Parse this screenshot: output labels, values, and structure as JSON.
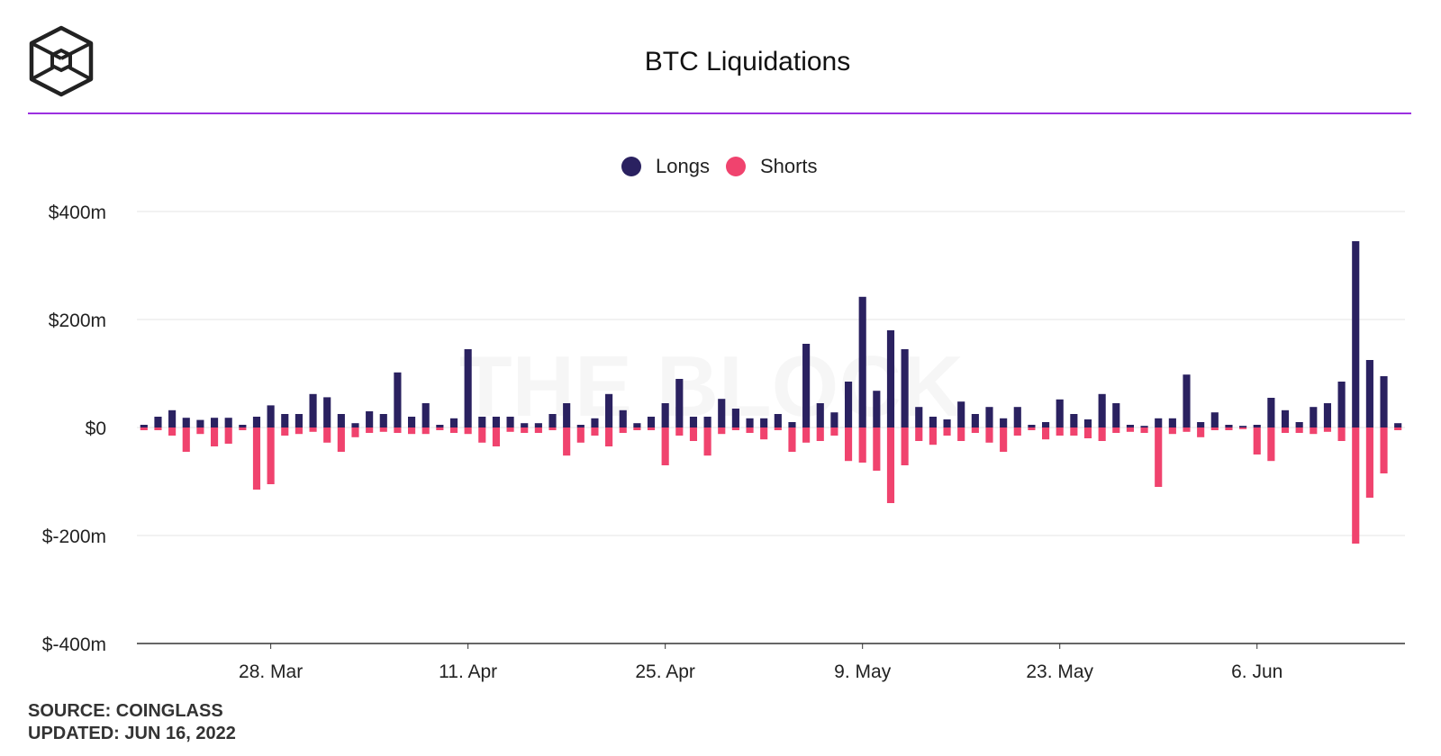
{
  "header": {
    "title": "BTC Liquidations"
  },
  "legend": {
    "longs_label": "Longs",
    "shorts_label": "Shorts"
  },
  "colors": {
    "longs": "#2a2160",
    "shorts": "#f0436e",
    "accent_line": "#9b30e0"
  },
  "watermark": "THE BLOCK",
  "footer": {
    "source": "SOURCE: COINGLASS",
    "updated": "UPDATED: JUN 16, 2022"
  },
  "chart_data": {
    "type": "bar",
    "title": "BTC Liquidations",
    "xlabel": "",
    "ylabel": "",
    "ylim": [
      -400,
      400
    ],
    "y_ticks": [
      400,
      200,
      0,
      -200,
      -400
    ],
    "y_tick_labels": [
      "$400m",
      "$200m",
      "$0",
      "$-200m",
      "$-400m"
    ],
    "x_tick_labels": [
      {
        "label": "28. Mar",
        "index": 9
      },
      {
        "label": "11. Apr",
        "index": 23
      },
      {
        "label": "25. Apr",
        "index": 37
      },
      {
        "label": "9. May",
        "index": 51
      },
      {
        "label": "23. May",
        "index": 65
      },
      {
        "label": "6. Jun",
        "index": 79
      }
    ],
    "start_date": "2022-03-19",
    "end_date": "2022-06-16",
    "grid": true,
    "legend_position": "top-center",
    "series": [
      {
        "name": "Longs",
        "color": "#2a2160",
        "values": [
          5,
          20,
          32,
          18,
          14,
          18,
          18,
          5,
          20,
          41,
          25,
          25,
          62,
          56,
          25,
          8,
          30,
          25,
          102,
          20,
          45,
          5,
          17,
          145,
          20,
          20,
          20,
          8,
          8,
          25,
          45,
          5,
          17,
          62,
          32,
          8,
          20,
          45,
          90,
          20,
          20,
          53,
          35,
          17,
          17,
          25,
          10,
          155,
          45,
          28,
          85,
          242,
          68,
          180,
          145,
          38,
          20,
          15,
          48,
          25,
          38,
          17,
          38,
          5,
          10,
          52,
          25,
          15,
          62,
          45,
          5,
          3,
          17,
          17,
          98,
          10,
          28,
          5,
          3,
          5,
          55,
          32,
          10,
          38,
          45,
          85,
          345,
          125,
          95,
          8
        ]
      },
      {
        "name": "Shorts",
        "color": "#f0436e",
        "values": [
          -5,
          -5,
          -15,
          -45,
          -12,
          -35,
          -30,
          -5,
          -115,
          -105,
          -15,
          -12,
          -8,
          -28,
          -45,
          -18,
          -10,
          -8,
          -10,
          -12,
          -12,
          -5,
          -10,
          -12,
          -28,
          -35,
          -8,
          -10,
          -10,
          -5,
          -52,
          -28,
          -15,
          -35,
          -10,
          -5,
          -5,
          -70,
          -15,
          -25,
          -52,
          -12,
          -5,
          -10,
          -22,
          -5,
          -45,
          -28,
          -25,
          -15,
          -62,
          -65,
          -80,
          -140,
          -70,
          -25,
          -32,
          -15,
          -25,
          -10,
          -28,
          -45,
          -15,
          -5,
          -22,
          -15,
          -15,
          -20,
          -25,
          -10,
          -8,
          -10,
          -110,
          -12,
          -8,
          -18,
          -5,
          -5,
          -3,
          -50,
          -62,
          -10,
          -10,
          -12,
          -8,
          -25,
          -215,
          -130,
          -85,
          -5
        ]
      }
    ]
  }
}
